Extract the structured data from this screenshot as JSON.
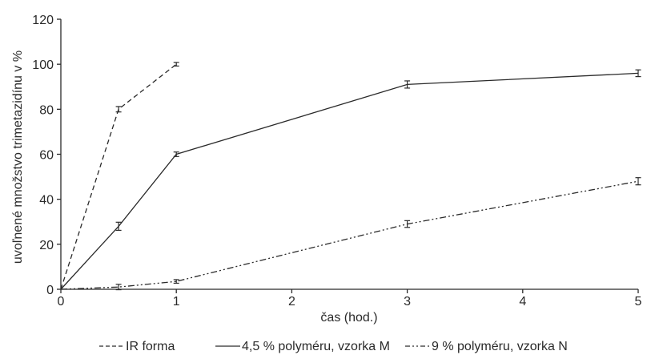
{
  "chart_data": {
    "type": "line",
    "xlabel": "čas (hod.)",
    "ylabel": "uvoľnené množstvo trimetazidínu v %",
    "xlim": [
      0,
      5
    ],
    "ylim": [
      0,
      120
    ],
    "xticks": [
      "0",
      "1",
      "2",
      "3",
      "4",
      "5"
    ],
    "yticks": [
      "0",
      "20",
      "40",
      "60",
      "80",
      "100",
      "120"
    ],
    "grid": false,
    "legend_position": "bottom",
    "error_bars": true,
    "series": [
      {
        "name": "IR forma",
        "style": "dashed",
        "color": "#2a2a2a",
        "x": [
          0,
          0.5,
          1
        ],
        "y": [
          0,
          80,
          100
        ],
        "err": [
          0,
          1.2,
          0.8
        ]
      },
      {
        "name": "4,5 % polyméru, vzorka M",
        "style": "solid",
        "color": "#2a2a2a",
        "x": [
          0,
          0.5,
          1,
          3,
          5
        ],
        "y": [
          0,
          28,
          60,
          91,
          96
        ],
        "err": [
          0,
          1.8,
          1.0,
          1.6,
          1.5
        ]
      },
      {
        "name": "9 % polyméru, vzorka N",
        "style": "dashdotdot",
        "color": "#2a2a2a",
        "x": [
          0,
          0.5,
          1,
          3,
          5
        ],
        "y": [
          0,
          1,
          3.5,
          29,
          48
        ],
        "err": [
          0,
          1.2,
          0.8,
          1.5,
          1.6
        ]
      }
    ]
  }
}
